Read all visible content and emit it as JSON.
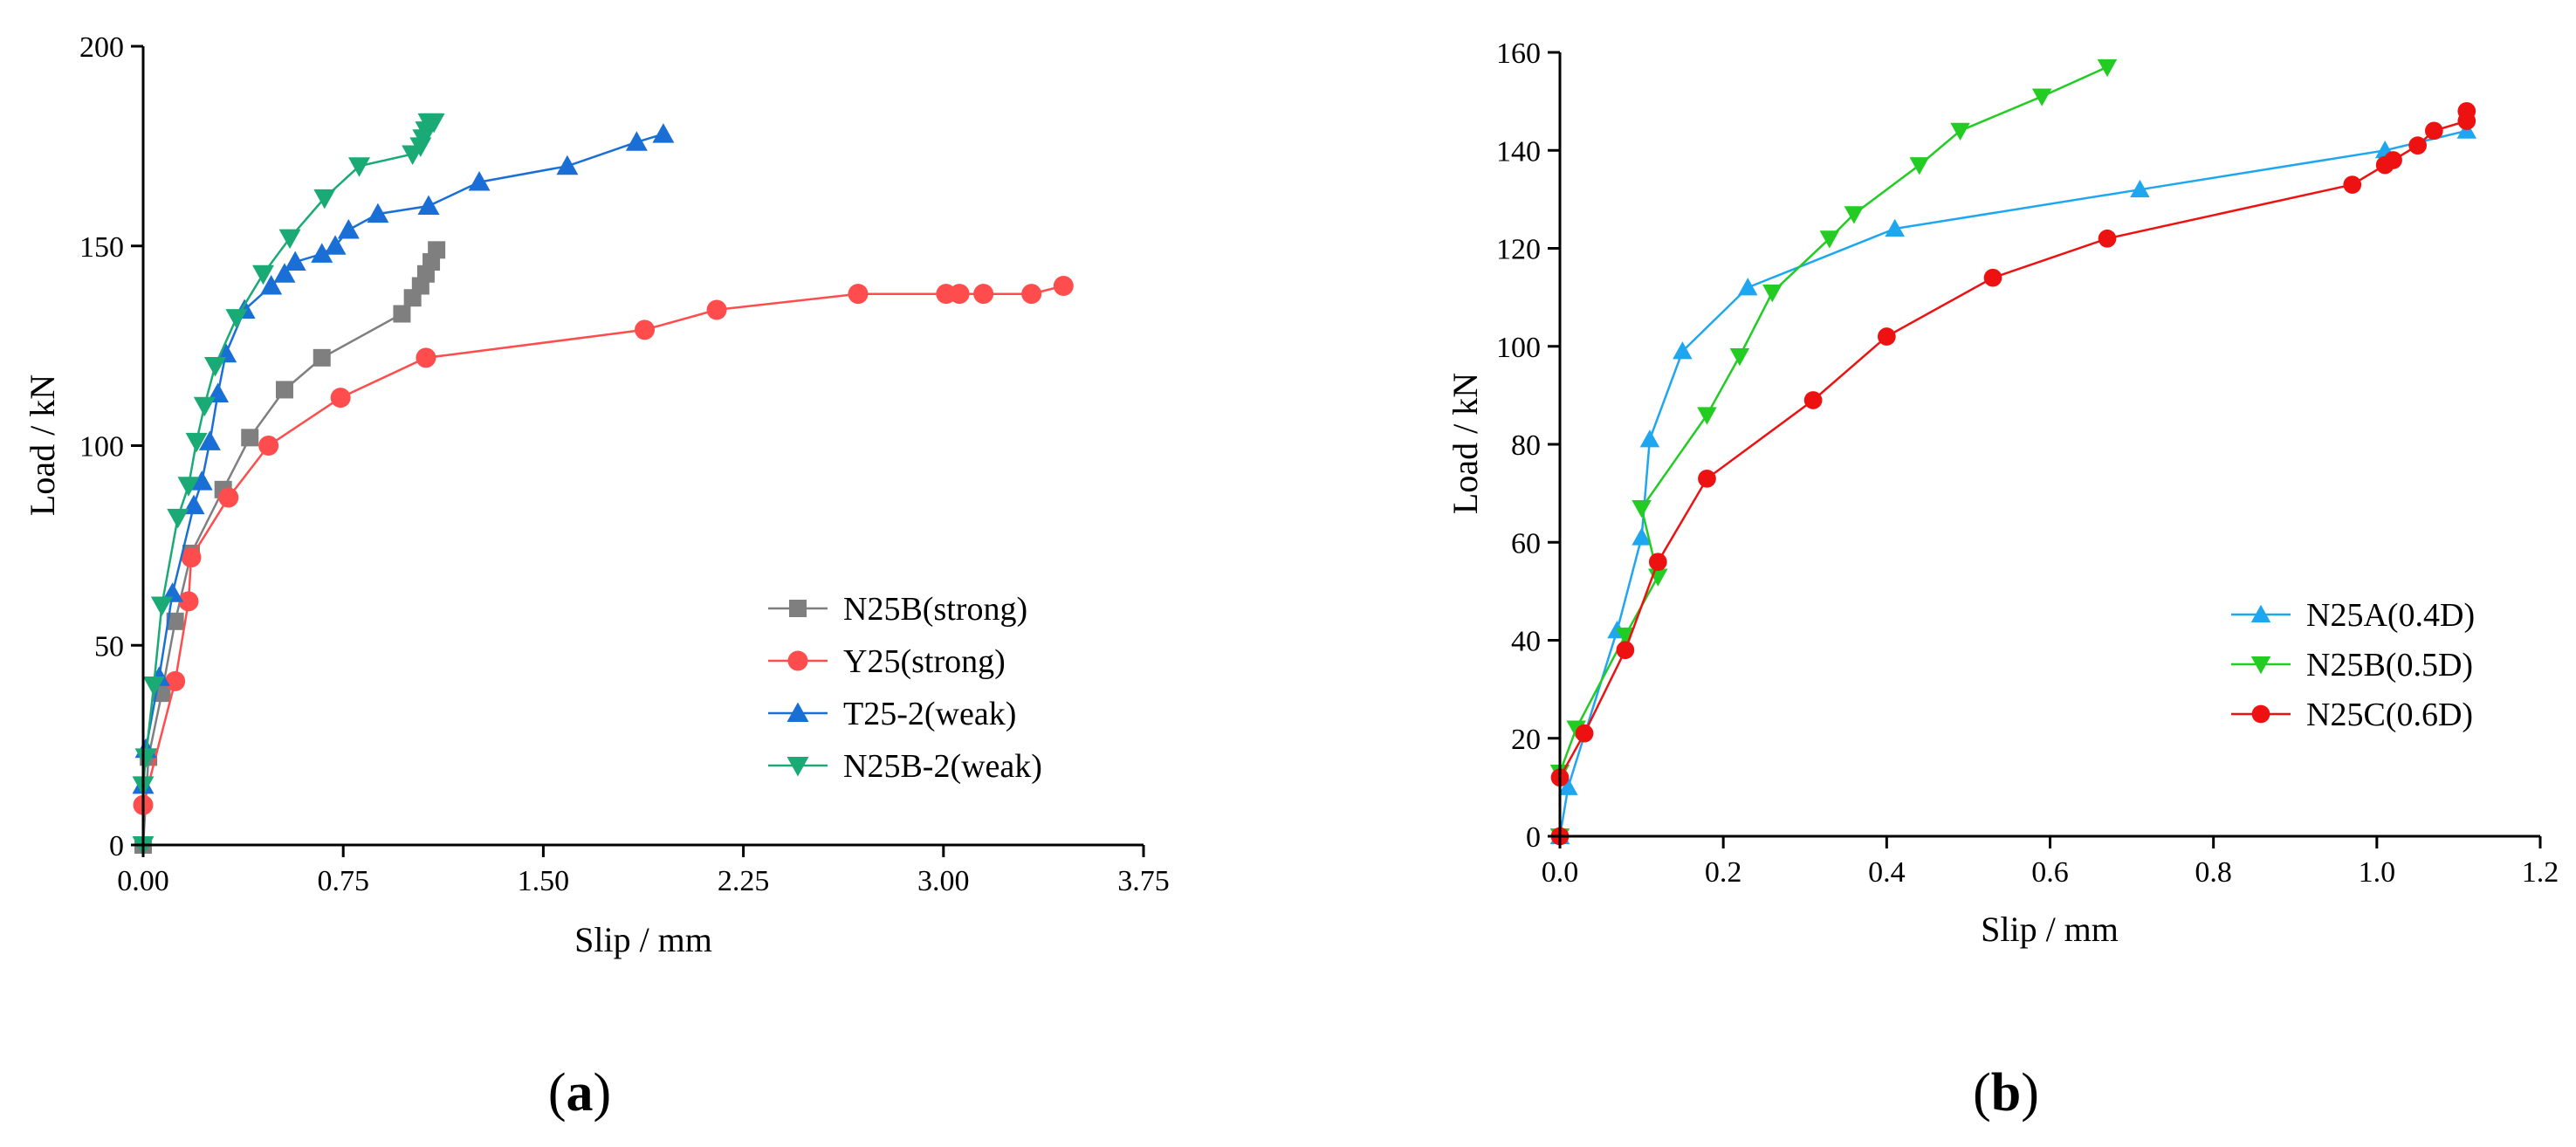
{
  "chart_data": [
    {
      "type": "line",
      "panel_label": {
        "open": "(",
        "letter": "a",
        "close": ")"
      },
      "xlabel": "Slip / mm",
      "ylabel": "Load / kN",
      "xlim": [
        0,
        3.75
      ],
      "ylim": [
        0,
        200
      ],
      "x_ticks": [
        0,
        0.75,
        1.5,
        2.25,
        3.0,
        3.75
      ],
      "x_tick_labels": [
        "0.00",
        "0.75",
        "1.50",
        "2.25",
        "3.00",
        "3.75"
      ],
      "y_ticks": [
        0,
        50,
        100,
        150,
        200
      ],
      "y_tick_labels": [
        "0",
        "50",
        "100",
        "150",
        "200"
      ],
      "grid": false,
      "legend_position": "lower-right",
      "series": [
        {
          "name": "N25B(strong)",
          "color": "#7f7f7f",
          "marker": "square",
          "points": [
            [
              0.0,
              0
            ],
            [
              0.02,
              22
            ],
            [
              0.07,
              38
            ],
            [
              0.12,
              56
            ],
            [
              0.18,
              73
            ],
            [
              0.3,
              89
            ],
            [
              0.4,
              102
            ],
            [
              0.53,
              114
            ],
            [
              0.67,
              122
            ],
            [
              0.97,
              133
            ],
            [
              1.01,
              137
            ],
            [
              1.04,
              140
            ],
            [
              1.06,
              143
            ],
            [
              1.08,
              146
            ],
            [
              1.1,
              149
            ]
          ]
        },
        {
          "name": "Y25(strong)",
          "color": "#ff4d4d",
          "marker": "circle",
          "points": [
            [
              0.0,
              10
            ],
            [
              0.12,
              41
            ],
            [
              0.17,
              61
            ],
            [
              0.18,
              72
            ],
            [
              0.32,
              87
            ],
            [
              0.47,
              100
            ],
            [
              0.74,
              112
            ],
            [
              1.06,
              122
            ],
            [
              1.88,
              129
            ],
            [
              2.15,
              134
            ],
            [
              2.68,
              138
            ],
            [
              3.01,
              138
            ],
            [
              3.06,
              138
            ],
            [
              3.15,
              138
            ],
            [
              3.33,
              138
            ],
            [
              3.45,
              140
            ]
          ]
        },
        {
          "name": "T25-2(weak)",
          "color": "#1a6fd6",
          "marker": "triangle-up",
          "points": [
            [
              0.0,
              15
            ],
            [
              0.01,
              24
            ],
            [
              0.06,
              42
            ],
            [
              0.11,
              63
            ],
            [
              0.19,
              85
            ],
            [
              0.22,
              91
            ],
            [
              0.25,
              101
            ],
            [
              0.28,
              113
            ],
            [
              0.31,
              123
            ],
            [
              0.38,
              134
            ],
            [
              0.48,
              140
            ],
            [
              0.53,
              143
            ],
            [
              0.57,
              146
            ],
            [
              0.67,
              148
            ],
            [
              0.72,
              150
            ],
            [
              0.77,
              154
            ],
            [
              0.88,
              158
            ],
            [
              1.07,
              160
            ],
            [
              1.26,
              166
            ],
            [
              1.59,
              170
            ],
            [
              1.85,
              176
            ],
            [
              1.95,
              178
            ]
          ]
        },
        {
          "name": "N25B-2(weak)",
          "color": "#1aaa75",
          "marker": "triangle-down",
          "points": [
            [
              0.0,
              0
            ],
            [
              0.0,
              15
            ],
            [
              0.01,
              22
            ],
            [
              0.04,
              40
            ],
            [
              0.07,
              60
            ],
            [
              0.13,
              82
            ],
            [
              0.17,
              90
            ],
            [
              0.2,
              101
            ],
            [
              0.23,
              110
            ],
            [
              0.27,
              120
            ],
            [
              0.35,
              132
            ],
            [
              0.45,
              143
            ],
            [
              0.55,
              152
            ],
            [
              0.68,
              162
            ],
            [
              0.81,
              170
            ],
            [
              1.01,
              173
            ],
            [
              1.04,
              175
            ],
            [
              1.05,
              177
            ],
            [
              1.06,
              179
            ],
            [
              1.07,
              181
            ],
            [
              1.08,
              181
            ],
            [
              1.09,
              181
            ]
          ]
        }
      ]
    },
    {
      "type": "line",
      "panel_label": {
        "open": "(",
        "letter": "b",
        "close": ")"
      },
      "xlabel": "Slip / mm",
      "ylabel": "Load / kN",
      "xlim": [
        0,
        1.2
      ],
      "ylim": [
        0,
        160
      ],
      "x_ticks": [
        0,
        0.2,
        0.4,
        0.6,
        0.8,
        1.0,
        1.2
      ],
      "x_tick_labels": [
        "0.0",
        "0.2",
        "0.4",
        "0.6",
        "0.8",
        "1.0",
        "1.2"
      ],
      "y_ticks": [
        0,
        20,
        40,
        60,
        80,
        100,
        120,
        140,
        160
      ],
      "y_tick_labels": [
        "0",
        "20",
        "40",
        "60",
        "80",
        "100",
        "120",
        "140",
        "160"
      ],
      "grid": false,
      "legend_position": "lower-right",
      "series": [
        {
          "name": "N25A(0.4D)",
          "color": "#1ea7f0",
          "marker": "triangle-up",
          "points": [
            [
              0.0,
              0
            ],
            [
              0.01,
              10
            ],
            [
              0.07,
              42
            ],
            [
              0.1,
              61
            ],
            [
              0.11,
              81
            ],
            [
              0.15,
              99
            ],
            [
              0.23,
              112
            ],
            [
              0.41,
              124
            ],
            [
              0.71,
              132
            ],
            [
              1.01,
              140
            ],
            [
              1.11,
              144
            ]
          ]
        },
        {
          "name": "N25B(0.5D)",
          "color": "#22cc22",
          "marker": "triangle-down",
          "points": [
            [
              0.0,
              0
            ],
            [
              0.0,
              13
            ],
            [
              0.02,
              22
            ],
            [
              0.08,
              41
            ],
            [
              0.12,
              53
            ],
            [
              0.1,
              67
            ],
            [
              0.18,
              86
            ],
            [
              0.22,
              98
            ],
            [
              0.26,
              111
            ],
            [
              0.33,
              122
            ],
            [
              0.36,
              127
            ],
            [
              0.44,
              137
            ],
            [
              0.49,
              144
            ],
            [
              0.59,
              151
            ],
            [
              0.67,
              157
            ]
          ]
        },
        {
          "name": "N25C(0.6D)",
          "color": "#ee1111",
          "marker": "circle",
          "points": [
            [
              0.0,
              0
            ],
            [
              0.0,
              12
            ],
            [
              0.03,
              21
            ],
            [
              0.08,
              38
            ],
            [
              0.12,
              56
            ],
            [
              0.18,
              73
            ],
            [
              0.31,
              89
            ],
            [
              0.4,
              102
            ],
            [
              0.53,
              114
            ],
            [
              0.67,
              122
            ],
            [
              0.97,
              133
            ],
            [
              1.01,
              137
            ],
            [
              1.02,
              138
            ],
            [
              1.05,
              141
            ],
            [
              1.07,
              144
            ],
            [
              1.11,
              146
            ],
            [
              1.11,
              148
            ]
          ]
        }
      ]
    }
  ]
}
